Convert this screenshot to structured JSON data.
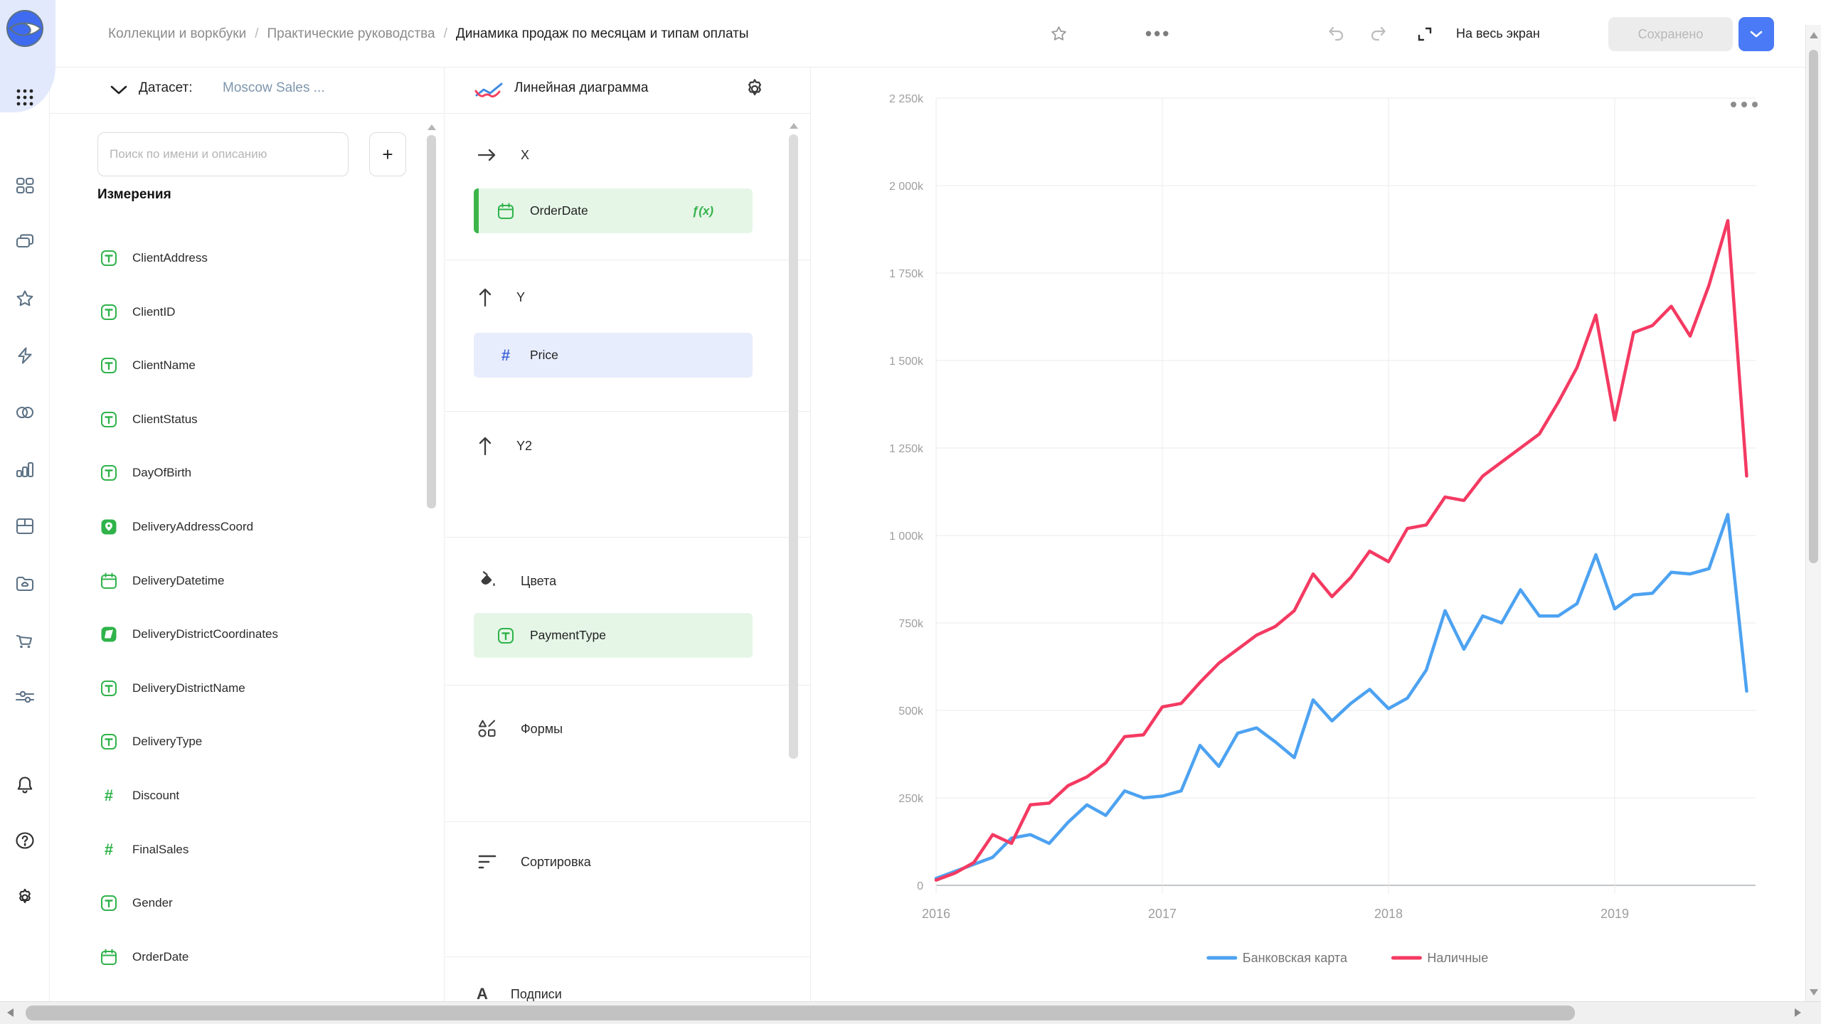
{
  "header": {
    "breadcrumbs": [
      "Коллекции и воркбуки",
      "Практические руководства",
      "Динамика продаж по месяцам и типам оплаты"
    ],
    "separator": "/",
    "fullscreen_label": "На весь экран",
    "save_button_label": "Сохранено"
  },
  "sidebar": {
    "icons": [
      "datalens-logo",
      "apps-grid",
      "dashboards",
      "collections",
      "favorites",
      "quick-actions",
      "datasets",
      "charts",
      "tables",
      "storage",
      "marketplace",
      "services",
      "notifications",
      "help",
      "settings"
    ]
  },
  "dataset_panel": {
    "collapse_label": "Датасет:",
    "dataset_name": "Moscow Sales ...",
    "search_placeholder": "Поиск по имени и описанию",
    "add_button_label": "+",
    "section_title": "Измерения",
    "fields": [
      {
        "name": "ClientAddress",
        "type": "string"
      },
      {
        "name": "ClientID",
        "type": "string"
      },
      {
        "name": "ClientName",
        "type": "string"
      },
      {
        "name": "ClientStatus",
        "type": "string"
      },
      {
        "name": "DayOfBirth",
        "type": "string"
      },
      {
        "name": "DeliveryAddressCoord",
        "type": "geopoint"
      },
      {
        "name": "DeliveryDatetime",
        "type": "date"
      },
      {
        "name": "DeliveryDistrictCoordinates",
        "type": "geopolygon"
      },
      {
        "name": "DeliveryDistrictName",
        "type": "string"
      },
      {
        "name": "DeliveryType",
        "type": "string"
      },
      {
        "name": "Discount",
        "type": "number"
      },
      {
        "name": "FinalSales",
        "type": "number"
      },
      {
        "name": "Gender",
        "type": "string"
      },
      {
        "name": "OrderDate",
        "type": "date"
      }
    ]
  },
  "config_panel": {
    "chart_type_label": "Линейная диаграмма",
    "sections": {
      "x": "X",
      "y": "Y",
      "y2": "Y2",
      "colors": "Цвета",
      "shapes": "Формы",
      "sorting": "Сортировка",
      "labels": "Подписи"
    },
    "x_field": {
      "name": "OrderDate",
      "type": "date",
      "fx_badge": "ƒ(x)"
    },
    "y_field": {
      "name": "Price",
      "type": "number"
    },
    "color_field": {
      "name": "PaymentType",
      "type": "string"
    }
  },
  "chart": {
    "chart_data": {
      "type": "line",
      "title": "",
      "xlabel": "",
      "ylabel": "",
      "values_unit": "k",
      "ylim_k": [
        0,
        2250
      ],
      "y_ticks": [
        "0",
        "250k",
        "500k",
        "750k",
        "1 000k",
        "1 250k",
        "1 500k",
        "1 750k",
        "2 000k",
        "2 250k"
      ],
      "x_ticks": [
        "2016",
        "2017",
        "2018",
        "2019"
      ],
      "grid": true,
      "legend_position": "bottom",
      "x_months": [
        "2016-01",
        "2016-02",
        "2016-03",
        "2016-04",
        "2016-05",
        "2016-06",
        "2016-07",
        "2016-08",
        "2016-09",
        "2016-10",
        "2016-11",
        "2016-12",
        "2017-01",
        "2017-02",
        "2017-03",
        "2017-04",
        "2017-05",
        "2017-06",
        "2017-07",
        "2017-08",
        "2017-09",
        "2017-10",
        "2017-11",
        "2017-12",
        "2018-01",
        "2018-02",
        "2018-03",
        "2018-04",
        "2018-05",
        "2018-06",
        "2018-07",
        "2018-08",
        "2018-09",
        "2018-10",
        "2018-11",
        "2018-12",
        "2019-01",
        "2019-02",
        "2019-03",
        "2019-04",
        "2019-05",
        "2019-06",
        "2019-07",
        "2019-08"
      ],
      "series": [
        {
          "name": "Банковская карта",
          "color": "#4DA2F1",
          "values": [
            20,
            40,
            60,
            80,
            135,
            145,
            120,
            180,
            230,
            200,
            270,
            250,
            255,
            270,
            400,
            340,
            435,
            450,
            410,
            365,
            530,
            470,
            520,
            560,
            505,
            535,
            615,
            785,
            675,
            770,
            750,
            845,
            770,
            770,
            805,
            945,
            790,
            830,
            835,
            895,
            890,
            905,
            1060,
            555
          ]
        },
        {
          "name": "Наличные",
          "color": "#F43A62",
          "values": [
            15,
            35,
            65,
            145,
            120,
            230,
            235,
            285,
            310,
            350,
            425,
            430,
            510,
            520,
            580,
            635,
            675,
            715,
            740,
            785,
            890,
            825,
            880,
            955,
            925,
            1020,
            1030,
            1110,
            1100,
            1170,
            1210,
            1250,
            1290,
            1380,
            1480,
            1630,
            1330,
            1580,
            1600,
            1655,
            1570,
            1715,
            1900,
            1170
          ]
        }
      ]
    }
  }
}
